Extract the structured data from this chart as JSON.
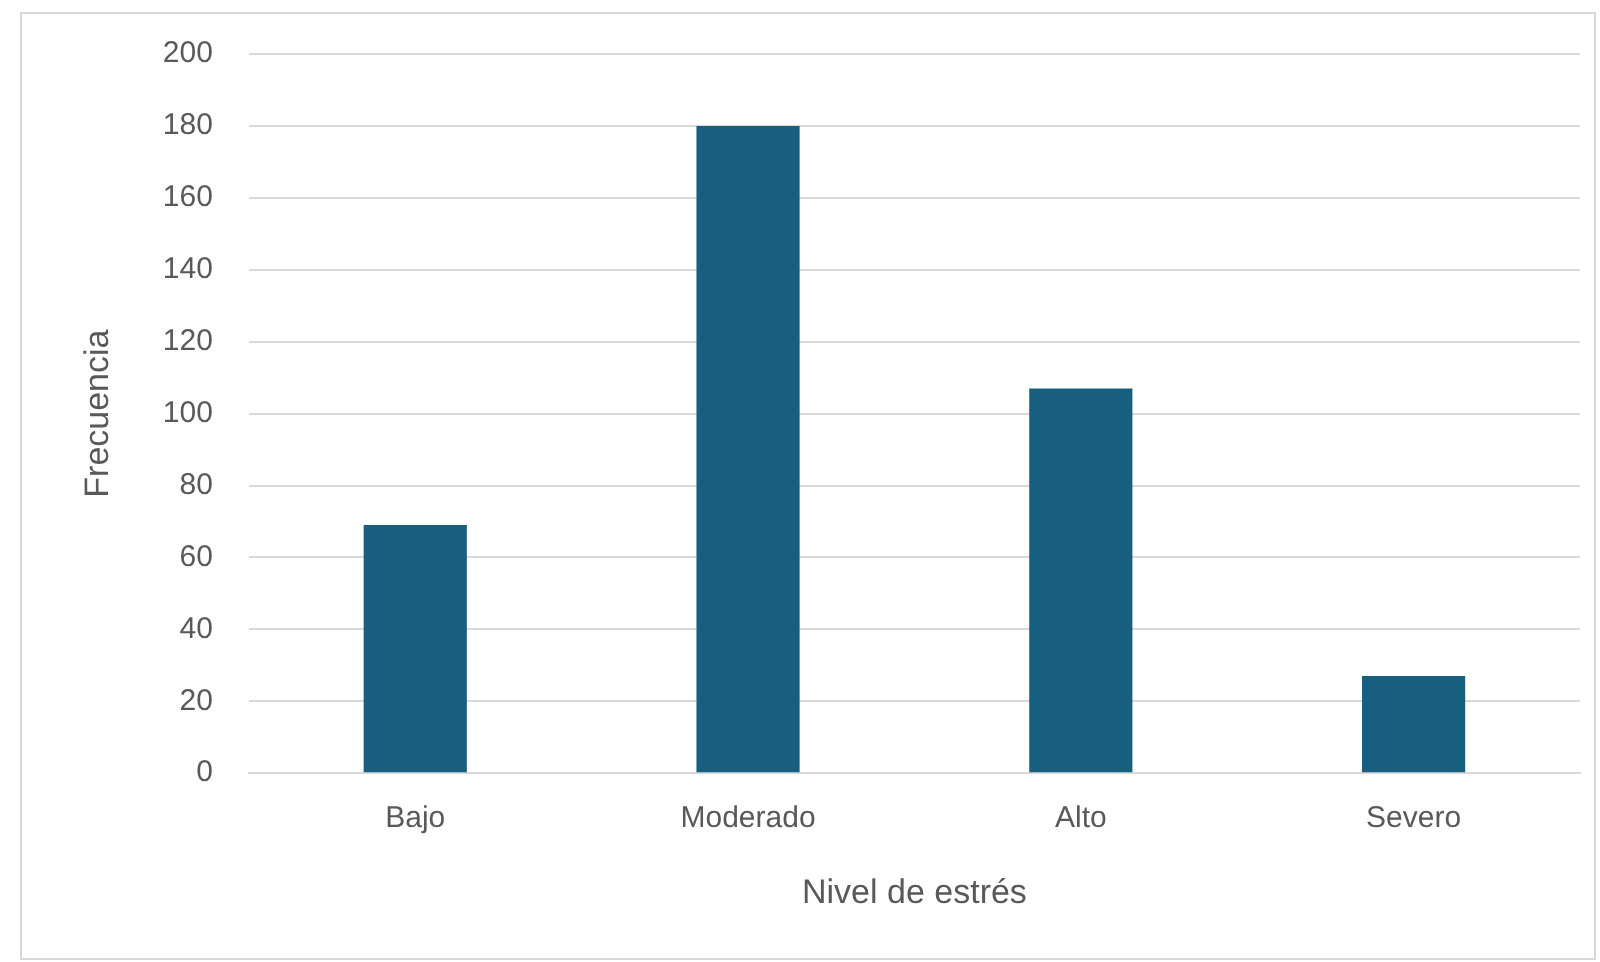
{
  "chart_data": {
    "type": "bar",
    "xlabel": "Nivel de estrés",
    "ylabel": "Frecuencia",
    "categories": [
      "Bajo",
      "Moderado",
      "Alto",
      "Severo"
    ],
    "values": [
      69,
      180,
      107,
      27
    ],
    "color": "#175e7f",
    "ylim": [
      0,
      200
    ],
    "yticks": [
      0,
      20,
      40,
      60,
      80,
      100,
      120,
      140,
      160,
      180,
      200
    ],
    "grid": "y",
    "legend": false
  }
}
